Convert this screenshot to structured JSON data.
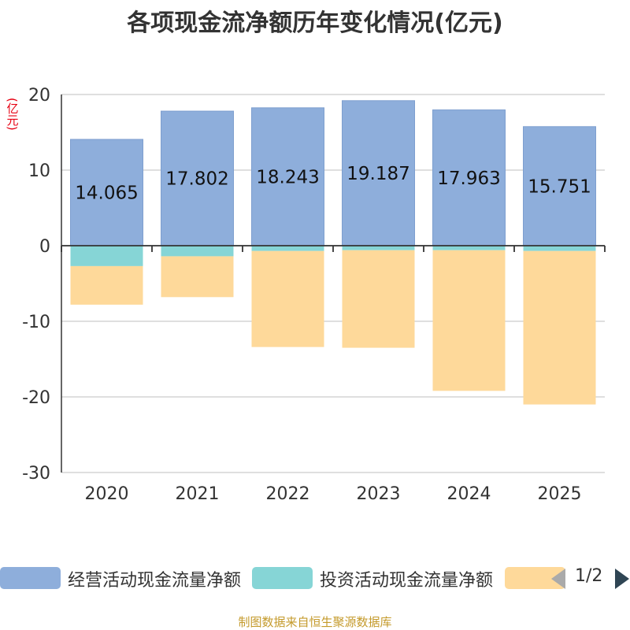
{
  "chart_data": {
    "type": "bar",
    "stacked": true,
    "title": "各项现金流净额历年变化情况(亿元)",
    "ylabel": "(亿元)",
    "xlabel": "",
    "categories": [
      "2020",
      "2021",
      "2022",
      "2023",
      "2024",
      "2025"
    ],
    "ylim": [
      -30,
      20
    ],
    "yticks": [
      20,
      10,
      0,
      -10,
      -20,
      -30
    ],
    "grid": true,
    "legend_position": "bottom",
    "series": [
      {
        "name": "经营活动现金流量净额",
        "color": "#8eaedb",
        "values": [
          14.065,
          17.802,
          18.243,
          19.187,
          17.963,
          15.751
        ],
        "value_labels": [
          "14.065",
          "17.802",
          "18.243",
          "19.187",
          "17.963",
          "15.751"
        ]
      },
      {
        "name": "投资活动现金流量净额",
        "color": "#86d5d6",
        "values": [
          -2.7,
          -1.4,
          -0.7,
          -0.6,
          -0.6,
          -0.7
        ]
      },
      {
        "name": "",
        "color": "#fed99a",
        "values": [
          -5.1,
          -5.4,
          -12.7,
          -12.9,
          -18.6,
          -20.3
        ]
      }
    ]
  },
  "legend": {
    "page_indicator": "1/2",
    "prev_icon": "triangle-left-icon",
    "next_icon": "triangle-right-icon"
  },
  "footer": {
    "source": "制图数据来自恒生聚源数据库"
  }
}
